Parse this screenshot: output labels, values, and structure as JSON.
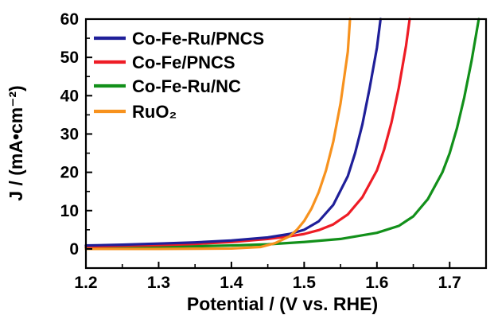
{
  "chart_data": {
    "type": "line",
    "xlabel": "Potential / (V vs. RHE)",
    "ylabel": "J / (mA•cm⁻²)",
    "xlim": [
      1.2,
      1.75
    ],
    "ylim": [
      -5,
      60
    ],
    "xticks": [
      "1.2",
      "1.3",
      "1.4",
      "1.5",
      "1.6",
      "1.7"
    ],
    "yticks": [
      "0",
      "10",
      "20",
      "30",
      "40",
      "50",
      "60"
    ],
    "legend_position": "top-left",
    "grid": false,
    "series": [
      {
        "name": "Co-Fe-Ru/PNCS",
        "color": "#1f1f99",
        "x": [
          1.2,
          1.25,
          1.3,
          1.35,
          1.4,
          1.45,
          1.48,
          1.5,
          1.52,
          1.54,
          1.56,
          1.57,
          1.58,
          1.59,
          1.6,
          1.605
        ],
        "y": [
          0.9,
          1.1,
          1.4,
          1.7,
          2.2,
          3.0,
          3.9,
          5.0,
          7.2,
          11.5,
          19.0,
          25.0,
          32.5,
          42.0,
          52.5,
          60.0
        ]
      },
      {
        "name": "Co-Fe/PNCS",
        "color": "#ee1c25",
        "x": [
          1.2,
          1.25,
          1.3,
          1.35,
          1.4,
          1.45,
          1.48,
          1.5,
          1.52,
          1.54,
          1.56,
          1.58,
          1.6,
          1.61,
          1.62,
          1.63,
          1.64,
          1.645
        ],
        "y": [
          0.6,
          0.8,
          1.0,
          1.3,
          1.8,
          2.6,
          3.3,
          3.9,
          4.9,
          6.4,
          9.0,
          13.5,
          20.5,
          26.0,
          33.0,
          42.0,
          53.0,
          60.0
        ]
      },
      {
        "name": "Co-Fe-Ru/NC",
        "color": "#12901a",
        "x": [
          1.2,
          1.3,
          1.4,
          1.45,
          1.5,
          1.55,
          1.6,
          1.63,
          1.65,
          1.67,
          1.69,
          1.7,
          1.71,
          1.72,
          1.73,
          1.74
        ],
        "y": [
          0.3,
          0.5,
          0.9,
          1.2,
          1.8,
          2.6,
          4.2,
          6.0,
          8.5,
          13.0,
          20.0,
          25.0,
          31.5,
          39.5,
          49.0,
          60.0
        ]
      },
      {
        "name": "RuO₂",
        "color": "#f7921e",
        "x": [
          1.2,
          1.3,
          1.4,
          1.44,
          1.46,
          1.48,
          1.49,
          1.5,
          1.51,
          1.52,
          1.53,
          1.54,
          1.55,
          1.56,
          1.563
        ],
        "y": [
          0.0,
          0.0,
          0.1,
          0.5,
          1.5,
          3.3,
          5.0,
          7.3,
          10.5,
          14.8,
          20.5,
          28.0,
          38.0,
          51.5,
          60.0
        ]
      }
    ]
  }
}
